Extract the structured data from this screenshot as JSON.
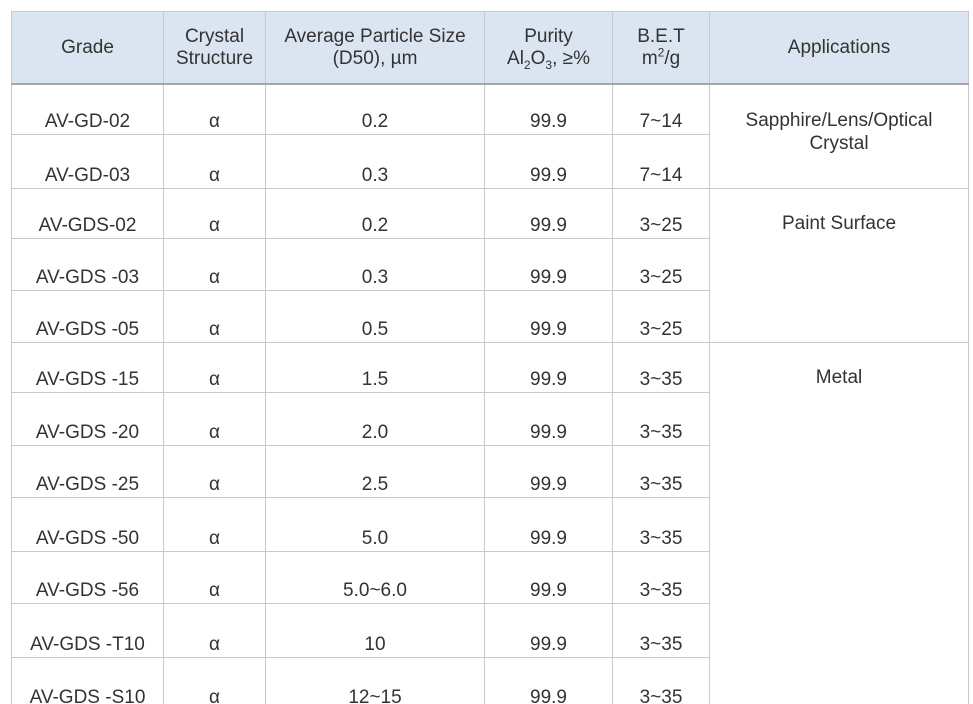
{
  "headers": {
    "grade": "Grade",
    "crystal_line1": "Crystal",
    "crystal_line2": "Structure",
    "size_line1": "Average Particle Size",
    "size_line2": "(D50), µm",
    "purity_line1": "Purity",
    "purity_al": "Al",
    "purity_sub2": "2",
    "purity_o": "O",
    "purity_sub3": "3",
    "purity_tail": ", ≥%",
    "bet_line1": "B.E.T",
    "bet_m": "m",
    "bet_sup": "2",
    "bet_tail": "/g",
    "applications": "Applications"
  },
  "rows": [
    {
      "grade": "AV-GD-02",
      "crystal": "α",
      "size": "0.2",
      "purity": "99.9",
      "bet": "7~14"
    },
    {
      "grade": "AV-GD-03",
      "crystal": "α",
      "size": "0.3",
      "purity": "99.9",
      "bet": "7~14"
    },
    {
      "grade": "AV-GDS-02",
      "crystal": "α",
      "size": "0.2",
      "purity": "99.9",
      "bet": "3~25"
    },
    {
      "grade": "AV-GDS -03",
      "crystal": "α",
      "size": "0.3",
      "purity": "99.9",
      "bet": "3~25"
    },
    {
      "grade": "AV-GDS -05",
      "crystal": "α",
      "size": "0.5",
      "purity": "99.9",
      "bet": "3~25"
    },
    {
      "grade": "AV-GDS -15",
      "crystal": "α",
      "size": "1.5",
      "purity": "99.9",
      "bet": "3~35"
    },
    {
      "grade": "AV-GDS -20",
      "crystal": "α",
      "size": "2.0",
      "purity": "99.9",
      "bet": "3~35"
    },
    {
      "grade": "AV-GDS -25",
      "crystal": "α",
      "size": "2.5",
      "purity": "99.9",
      "bet": "3~35"
    },
    {
      "grade": "AV-GDS -50",
      "crystal": "α",
      "size": "5.0",
      "purity": "99.9",
      "bet": "3~35"
    },
    {
      "grade": "AV-GDS -56",
      "crystal": "α",
      "size": "5.0~6.0",
      "purity": "99.9",
      "bet": "3~35"
    },
    {
      "grade": "AV-GDS -T10",
      "crystal": "α",
      "size": "10",
      "purity": "99.9",
      "bet": "3~35"
    },
    {
      "grade": "AV-GDS -S10",
      "crystal": "α",
      "size": "12~15",
      "purity": "99.9",
      "bet": "3~35"
    }
  ],
  "applications": {
    "group1_line1": "Sapphire/Lens/Optical",
    "group1_line2": "Crystal",
    "group2": "Paint Surface",
    "group3": "Metal"
  },
  "colors": {
    "header_bg": "#dbe5f1",
    "border": "#c9c9c9",
    "text": "#333333"
  }
}
